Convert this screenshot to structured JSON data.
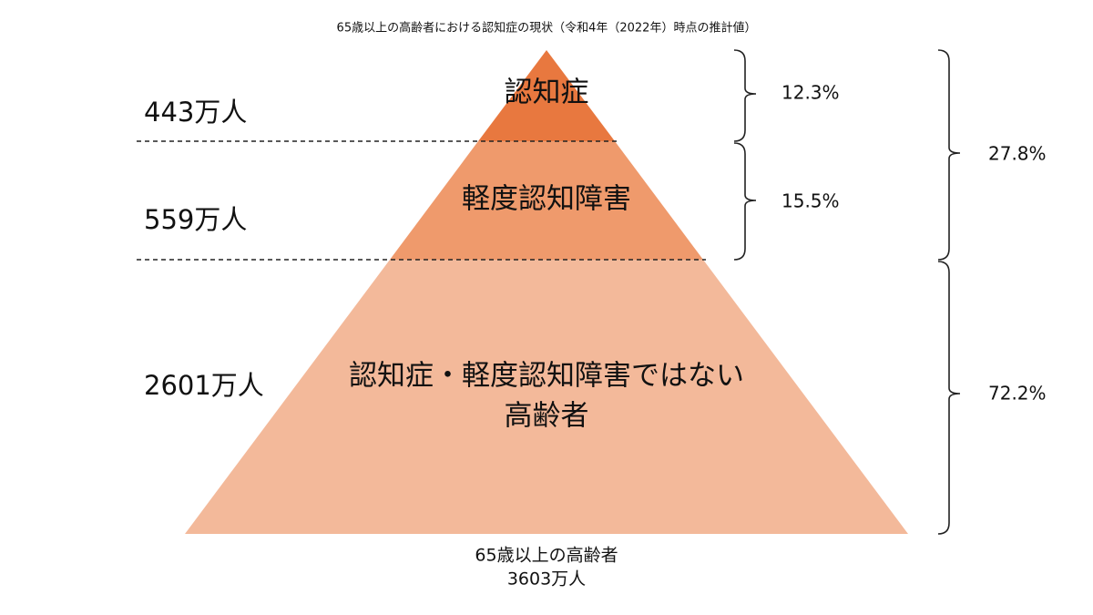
{
  "title": "65歳以上の高齢者における認知症の現状（令和4年（2022年）時点の推計値）",
  "layers": [
    {
      "label_lines": [
        "認知症"
      ],
      "count": "443万人",
      "share": "12.3%"
    },
    {
      "label_lines": [
        "軽度認知障害"
      ],
      "count": "559万人",
      "share": "15.5%"
    },
    {
      "label_lines": [
        "認知症・軽度認知障害ではない",
        "高齢者"
      ],
      "count": "2601万人"
    }
  ],
  "group_shares": [
    "27.8%",
    "72.2%"
  ],
  "total": {
    "label": "65歳以上の高齢者",
    "count": "3603万人"
  }
}
